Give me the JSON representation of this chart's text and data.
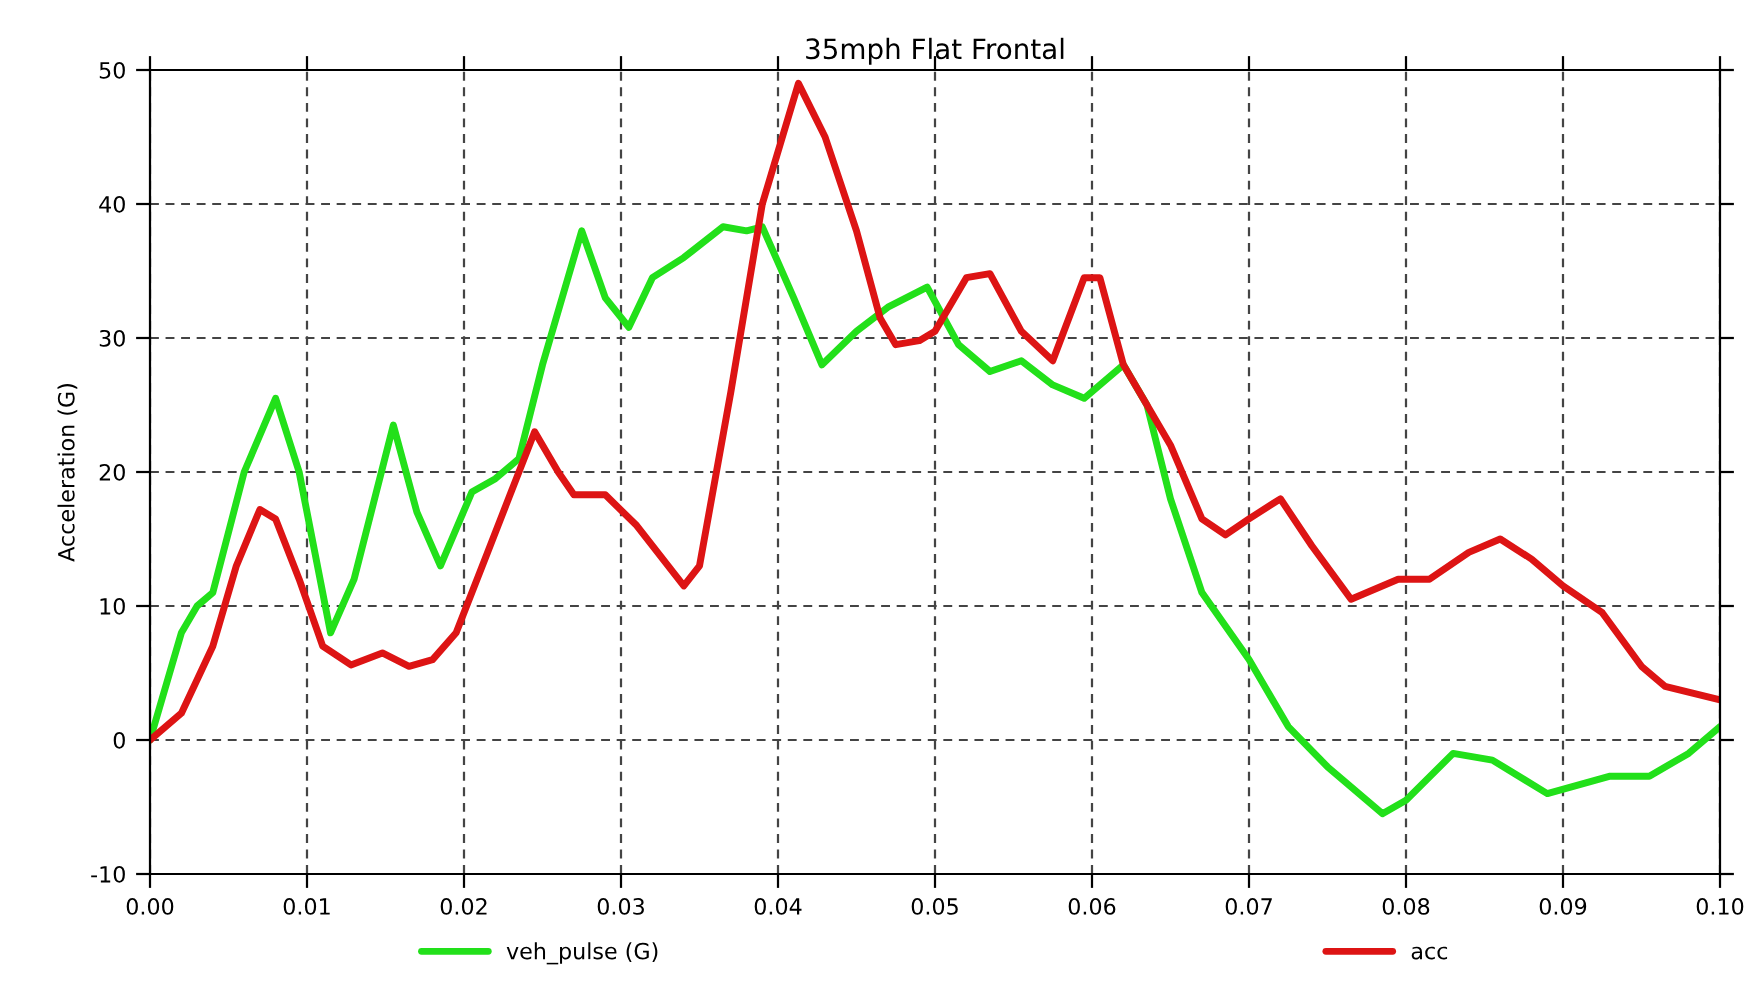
{
  "chart_data": {
    "type": "line",
    "title": "35mph Flat Frontal",
    "ylabel": "Acceleration (G)",
    "series": [
      {
        "name": "veh_pulse (G)",
        "color": "#22e01a",
        "x": [
          0,
          0.002,
          0.003,
          0.004,
          0.006,
          0.008,
          0.0095,
          0.0115,
          0.013,
          0.0155,
          0.017,
          0.0185,
          0.0205,
          0.022,
          0.0235,
          0.025,
          0.0275,
          0.029,
          0.0305,
          0.032,
          0.034,
          0.0365,
          0.038,
          0.039,
          0.041,
          0.0428,
          0.045,
          0.047,
          0.0495,
          0.0515,
          0.0535,
          0.0555,
          0.0575,
          0.0595,
          0.062,
          0.0635,
          0.065,
          0.067,
          0.07,
          0.0725,
          0.075,
          0.0785,
          0.08,
          0.083,
          0.0855,
          0.089,
          0.093,
          0.0955,
          0.098,
          0.1
        ],
        "values": [
          0,
          8,
          10,
          11,
          20,
          25.5,
          20,
          8,
          12,
          23.5,
          17,
          13,
          18.5,
          19.5,
          21,
          28,
          38,
          33,
          30.8,
          34.5,
          36,
          38.3,
          38,
          38.3,
          33,
          28,
          30.5,
          32.3,
          33.8,
          29.5,
          27.5,
          28.3,
          26.5,
          25.5,
          28,
          25,
          18,
          11,
          6,
          1,
          -2,
          -5.5,
          -4.5,
          -1,
          -1.5,
          -4,
          -2.7,
          -2.7,
          -1,
          1
        ]
      },
      {
        "name": "acc",
        "color": "#dd1414",
        "x": [
          0,
          0.002,
          0.004,
          0.0055,
          0.007,
          0.008,
          0.0095,
          0.011,
          0.0128,
          0.0148,
          0.0165,
          0.018,
          0.0195,
          0.0215,
          0.0245,
          0.026,
          0.027,
          0.029,
          0.031,
          0.034,
          0.035,
          0.037,
          0.039,
          0.0413,
          0.043,
          0.045,
          0.0465,
          0.0475,
          0.049,
          0.05,
          0.052,
          0.0535,
          0.0555,
          0.0575,
          0.0595,
          0.0605,
          0.062,
          0.0635,
          0.065,
          0.067,
          0.0685,
          0.07,
          0.072,
          0.074,
          0.0765,
          0.0795,
          0.0815,
          0.084,
          0.086,
          0.088,
          0.09,
          0.0925,
          0.095,
          0.0965,
          0.1
        ],
        "values": [
          0,
          2,
          7,
          13,
          17.2,
          16.5,
          12,
          7,
          5.6,
          6.5,
          5.5,
          6,
          8,
          14,
          23,
          20,
          18.3,
          18.3,
          16,
          11.5,
          13,
          26,
          40,
          49,
          45,
          38,
          31.5,
          29.5,
          29.8,
          30.5,
          34.5,
          34.8,
          30.5,
          28.3,
          34.5,
          34.5,
          28,
          25,
          22,
          16.5,
          15.3,
          16.5,
          18,
          14.5,
          10.5,
          12,
          12,
          14,
          15,
          13.5,
          11.5,
          9.5,
          5.5,
          4,
          3
        ]
      }
    ],
    "xlim": [
      0,
      0.1
    ],
    "ylim": [
      -10,
      50
    ],
    "xticks": [
      {
        "value": 0,
        "label": "0.00"
      },
      {
        "value": 0.01,
        "label": "0.01"
      },
      {
        "value": 0.02,
        "label": "0.02"
      },
      {
        "value": 0.03,
        "label": "0.03"
      },
      {
        "value": 0.04,
        "label": "0.04"
      },
      {
        "value": 0.05,
        "label": "0.05"
      },
      {
        "value": 0.06,
        "label": "0.06"
      },
      {
        "value": 0.07,
        "label": "0.07"
      },
      {
        "value": 0.08,
        "label": "0.08"
      },
      {
        "value": 0.09,
        "label": "0.09"
      },
      {
        "value": 0.1,
        "label": "0.10"
      }
    ],
    "yticks": [
      -10,
      0,
      10,
      20,
      30,
      40,
      50
    ],
    "grid": true,
    "legend": "bottom",
    "line_style": "solid",
    "marker": "none"
  }
}
